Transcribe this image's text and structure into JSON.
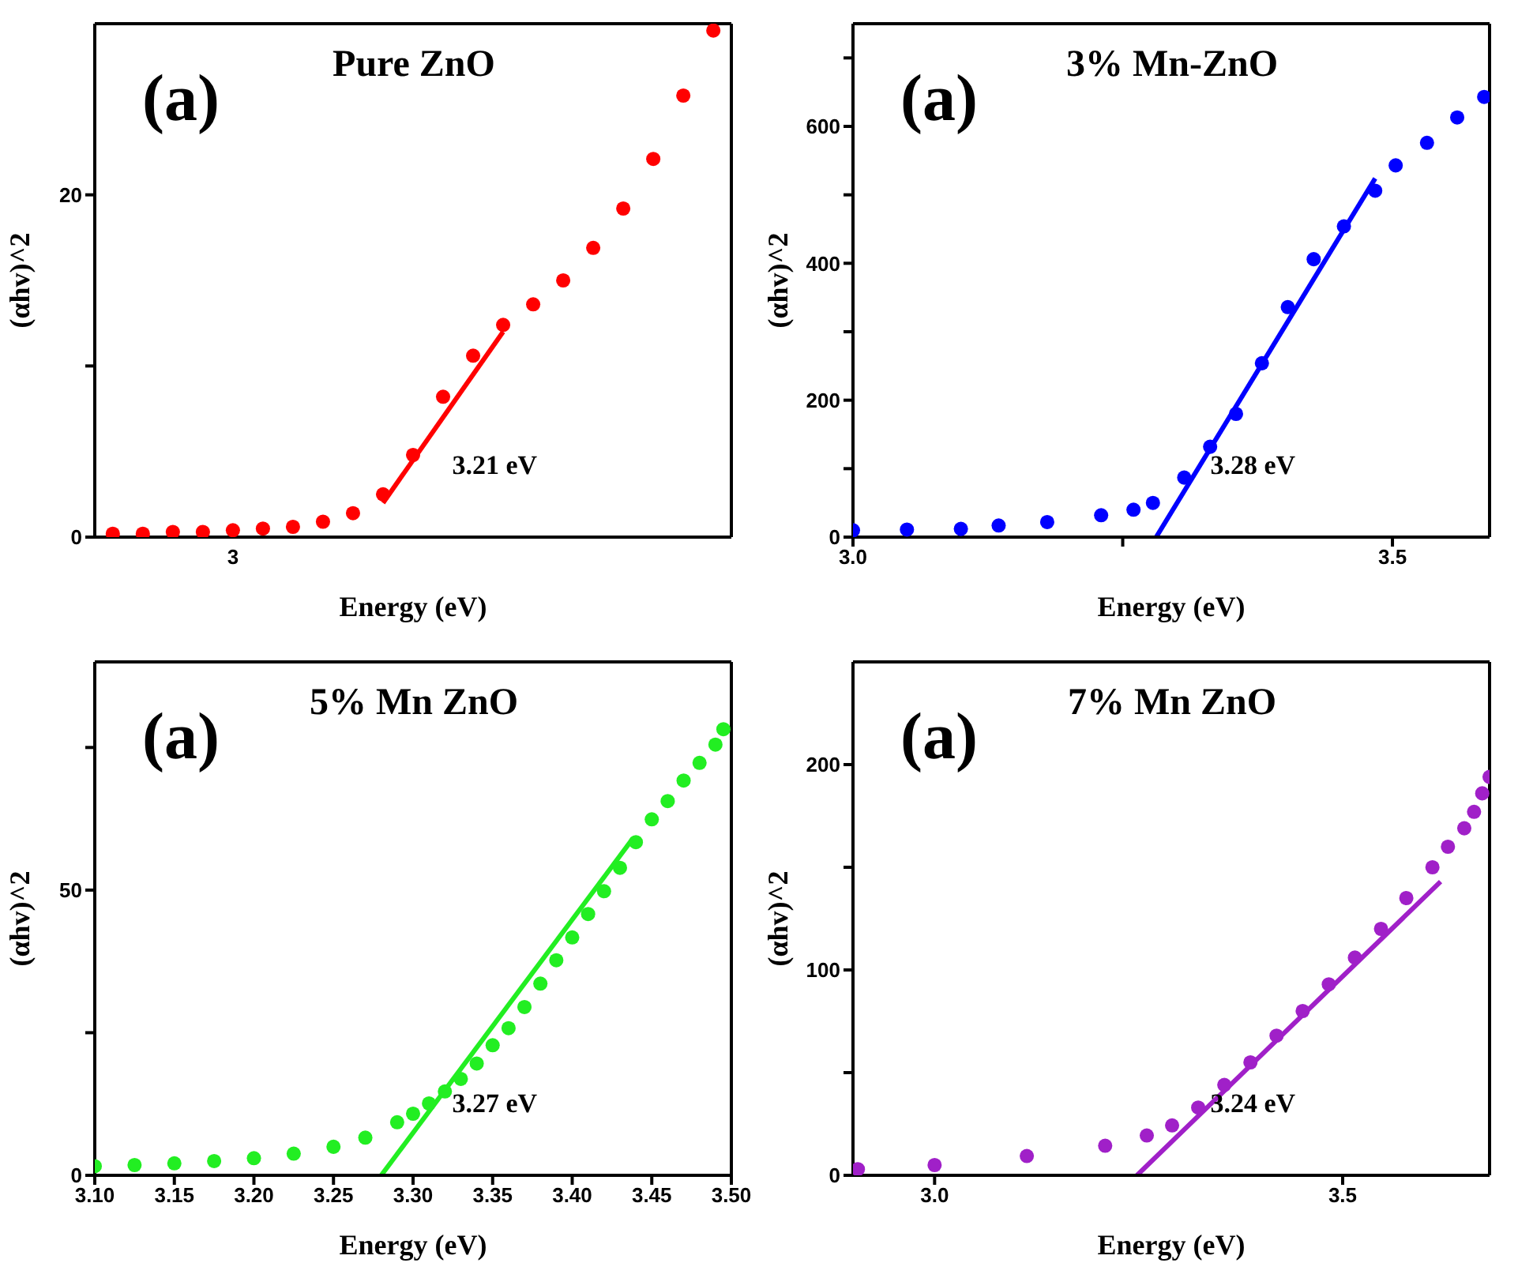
{
  "chart_data": [
    {
      "type": "scatter",
      "title": "Pure ZnO",
      "xlabel": "Energy (eV)",
      "ylabel": "(αhv)^2",
      "line_style": "solid",
      "categories": [
        null,
        null,
        null,
        null,
        "3",
        null,
        null,
        null,
        null,
        null,
        null,
        null,
        null,
        null,
        null,
        null,
        null,
        null,
        null,
        null,
        null
      ],
      "ylim": [
        0,
        30
      ],
      "yticks": [
        0,
        {
          "value": 10,
          "label": null
        },
        20
      ],
      "annotations": [
        "(a)",
        "3.21 eV"
      ],
      "series": [
        {
          "marker": "circle",
          "color": "#ff0000",
          "values": [
            0.2,
            0.2,
            0.3,
            0.3,
            0.4,
            0.5,
            0.6,
            0.9,
            1.4,
            2.5,
            4.8,
            8.2,
            10.6,
            12.4,
            13.6,
            15.0,
            16.9,
            19.2,
            22.1,
            25.8,
            29.6
          ]
        },
        {
          "type": "line",
          "marker": "none",
          "color": "#ff0000",
          "values": [
            null,
            null,
            null,
            null,
            null,
            null,
            null,
            null,
            null,
            2,
            null,
            null,
            null,
            12,
            null,
            null,
            null,
            null,
            null,
            null,
            null
          ]
        }
      ]
    },
    {
      "type": "scatter",
      "title": "3% Mn-ZnO",
      "xlabel": "Energy (eV)",
      "ylabel": "(αhv)^2",
      "line_style": "solid",
      "xlim": [
        3.0,
        3.59
      ],
      "xticks": [
        {
          "value": 3.0,
          "label": "3.0"
        },
        {
          "value": 3.25,
          "label": null
        },
        {
          "value": 3.5,
          "label": "3.5"
        }
      ],
      "ylim": [
        0,
        750
      ],
      "yticks": [
        0,
        {
          "value": 100,
          "label": null
        },
        200,
        {
          "value": 300,
          "label": null
        },
        400,
        {
          "value": 500,
          "label": null
        },
        600,
        {
          "value": 700,
          "label": null
        }
      ],
      "annotations": [
        "(a)",
        "3.28 eV"
      ],
      "series": [
        {
          "marker": "circle",
          "color": "#0000ff",
          "x": [
            3.0,
            3.05,
            3.1,
            3.135,
            3.18,
            3.23,
            3.26,
            3.278,
            3.307,
            3.331,
            3.355,
            3.379,
            3.403,
            3.427,
            3.455,
            3.484,
            3.503,
            3.532,
            3.56,
            3.585
          ],
          "values": [
            10,
            11,
            12,
            17,
            22,
            32,
            40,
            50,
            87,
            132,
            180,
            254,
            336,
            406,
            454,
            506,
            543,
            576,
            613,
            643
          ]
        },
        {
          "type": "line",
          "marker": "none",
          "color": "#0000ff",
          "x": [
            3.281,
            3.484
          ],
          "values": [
            0,
            524
          ]
        }
      ]
    },
    {
      "type": "scatter",
      "title": "5% Mn ZnO",
      "xlabel": "Energy (eV)",
      "ylabel": "(αhv)^2",
      "line_style": "solid",
      "xlim": [
        3.1,
        3.5
      ],
      "xticks": [
        {
          "value": 3.1,
          "label": "3.10"
        },
        {
          "value": 3.15,
          "label": "3.15"
        },
        {
          "value": 3.2,
          "label": "3.20"
        },
        {
          "value": 3.25,
          "label": "3.25"
        },
        {
          "value": 3.3,
          "label": "3.30"
        },
        {
          "value": 3.35,
          "label": "3.35"
        },
        {
          "value": 3.4,
          "label": "3.40"
        },
        {
          "value": 3.45,
          "label": "3.45"
        },
        {
          "value": 3.5,
          "label": "3.50"
        }
      ],
      "ylim": [
        0,
        90
      ],
      "yticks": [
        0,
        {
          "value": 25,
          "label": null
        },
        50,
        {
          "value": 75,
          "label": null
        }
      ],
      "annotations": [
        "(a)",
        "3.27 eV"
      ],
      "series": [
        {
          "marker": "circle",
          "color": "#22ee22",
          "x": [
            3.1,
            3.125,
            3.15,
            3.175,
            3.2,
            3.225,
            3.25,
            3.27,
            3.29,
            3.3,
            3.31,
            3.32,
            3.33,
            3.34,
            3.35,
            3.36,
            3.37,
            3.38,
            3.39,
            3.4,
            3.41,
            3.42,
            3.43,
            3.44,
            3.45,
            3.46,
            3.47,
            3.48,
            3.49,
            3.495
          ],
          "values": [
            1.6,
            1.8,
            2.1,
            2.5,
            3.0,
            3.8,
            5.0,
            6.6,
            9.3,
            10.8,
            12.6,
            14.7,
            16.9,
            19.6,
            22.8,
            25.8,
            29.5,
            33.6,
            37.7,
            41.7,
            45.8,
            49.8,
            53.9,
            58.4,
            62.4,
            65.6,
            69.2,
            72.3,
            75.5,
            78.2
          ]
        },
        {
          "type": "line",
          "marker": "none",
          "color": "#22ee22",
          "x": [
            3.28,
            3.438
          ],
          "values": [
            0,
            59
          ]
        }
      ]
    },
    {
      "type": "scatter",
      "title": "7% Mn ZnO",
      "xlabel": "Energy (eV)",
      "ylabel": "(αhv)^2",
      "line_style": "solid",
      "xlim": [
        2.9,
        3.68
      ],
      "xticks": [
        {
          "value": 3.0,
          "label": "3.0"
        },
        {
          "value": 3.5,
          "label": "3.5"
        }
      ],
      "ylim": [
        0,
        250
      ],
      "yticks": [
        0,
        {
          "value": 50,
          "label": null
        },
        100,
        {
          "value": 150,
          "label": null
        },
        200
      ],
      "annotations": [
        "(a)",
        "3.24 eV"
      ],
      "series": [
        {
          "marker": "circle",
          "color": "#a020c8",
          "x": [
            2.906,
            3.0,
            3.113,
            3.209,
            3.26,
            3.291,
            3.323,
            3.355,
            3.387,
            3.419,
            3.451,
            3.483,
            3.515,
            3.547,
            3.578,
            3.61,
            3.629,
            3.649,
            3.661,
            3.671,
            3.68
          ],
          "values": [
            3,
            5,
            9.4,
            14.4,
            19.4,
            24.3,
            33,
            44,
            55,
            68,
            80,
            93,
            106,
            120,
            135,
            150,
            160,
            169,
            177,
            186,
            194
          ]
        },
        {
          "type": "line",
          "marker": "none",
          "color": "#a020c8",
          "x": [
            3.248,
            3.62
          ],
          "values": [
            0,
            143
          ]
        }
      ]
    }
  ]
}
